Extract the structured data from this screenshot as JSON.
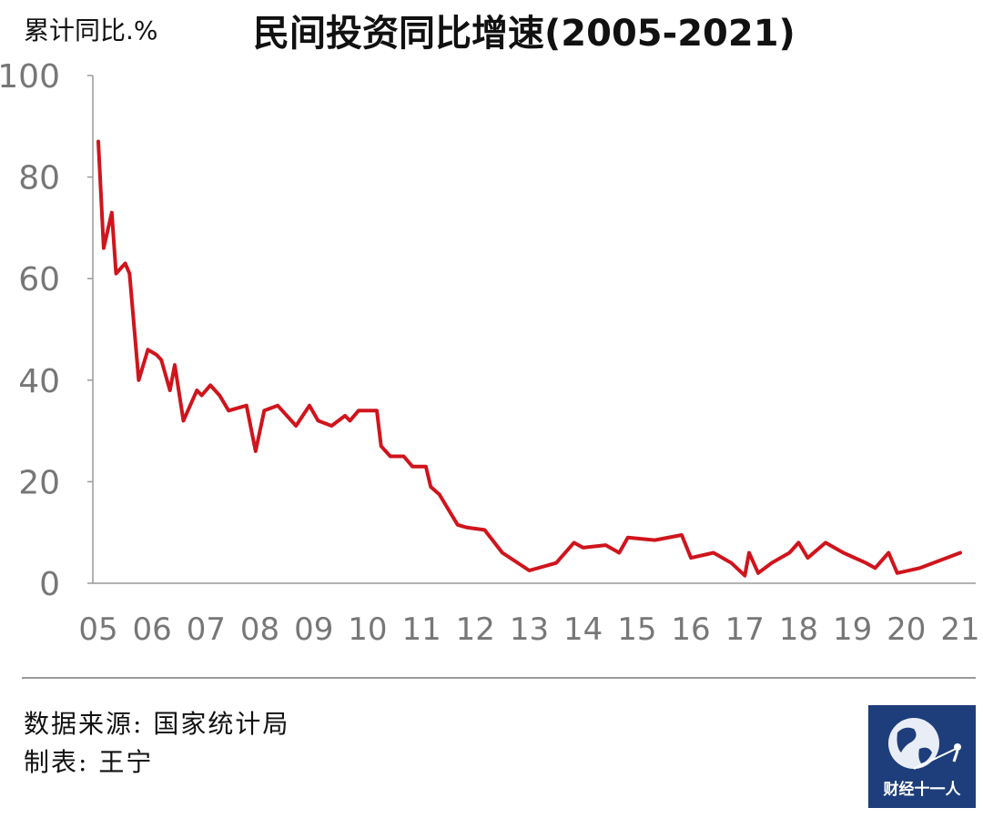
{
  "header": {
    "ylabel": "累计同比.%",
    "title": "民间投资同比增速(2005-2021)"
  },
  "chart_data": {
    "type": "line",
    "title": "民间投资同比增速(2005-2021)",
    "ylabel": "累计同比.%",
    "xlabel": "",
    "ylim": [
      0,
      100
    ],
    "yticks": [
      "0",
      "20",
      "40",
      "60",
      "80",
      "100"
    ],
    "xticks": [
      "05",
      "06",
      "07",
      "08",
      "09",
      "10",
      "11",
      "12",
      "13",
      "14",
      "15",
      "16",
      "17",
      "18",
      "19",
      "20",
      "21"
    ],
    "xlim": [
      2005,
      2021
    ],
    "line_color": "#d0141c",
    "grid": false,
    "series": [
      {
        "x": [
          2005.0,
          2005.1,
          2005.25,
          2005.33,
          2005.5,
          2005.58,
          2005.75,
          2005.92,
          2006.08,
          2006.17,
          2006.33,
          2006.42,
          2006.58,
          2006.83,
          2006.92,
          2007.08,
          2007.25,
          2007.42,
          2007.75,
          2007.92,
          2008.08,
          2008.33,
          2008.67,
          2008.92,
          2009.08,
          2009.33,
          2009.58,
          2009.67,
          2009.83,
          2010.0,
          2010.17,
          2010.25,
          2010.42,
          2010.67,
          2010.83,
          2011.08,
          2011.17,
          2011.33,
          2011.67,
          2011.83,
          2012.17,
          2012.5,
          2013.0,
          2013.5,
          2013.83,
          2014.0,
          2014.42,
          2014.67,
          2014.83,
          2015.33,
          2015.83,
          2016.0,
          2016.42,
          2016.75,
          2017.0,
          2017.08,
          2017.25,
          2017.5,
          2017.83,
          2018.0,
          2018.17,
          2018.5,
          2018.83,
          2019.25,
          2019.42,
          2019.67,
          2019.83,
          2020.25,
          2021.0
        ],
        "y": [
          87,
          66,
          73,
          61,
          63,
          61,
          40,
          46,
          45,
          44,
          38,
          43,
          32,
          38,
          37,
          39,
          37,
          34,
          35,
          26,
          34,
          35,
          31,
          35,
          32,
          31,
          33,
          32,
          34,
          34,
          34,
          27,
          25,
          25,
          23,
          23,
          19,
          17.5,
          11.5,
          11,
          10.5,
          6,
          2.5,
          4,
          8,
          7,
          7.5,
          6,
          9,
          8.5,
          9.5,
          5,
          6,
          4,
          1.5,
          6,
          2,
          4,
          6,
          8,
          5,
          8,
          6,
          4,
          3,
          6,
          2,
          3,
          6
        ]
      }
    ]
  },
  "footer": {
    "source": "数据来源: 国家统计局",
    "maker": "制表: 王宁",
    "logo_text": "财经十一人"
  }
}
